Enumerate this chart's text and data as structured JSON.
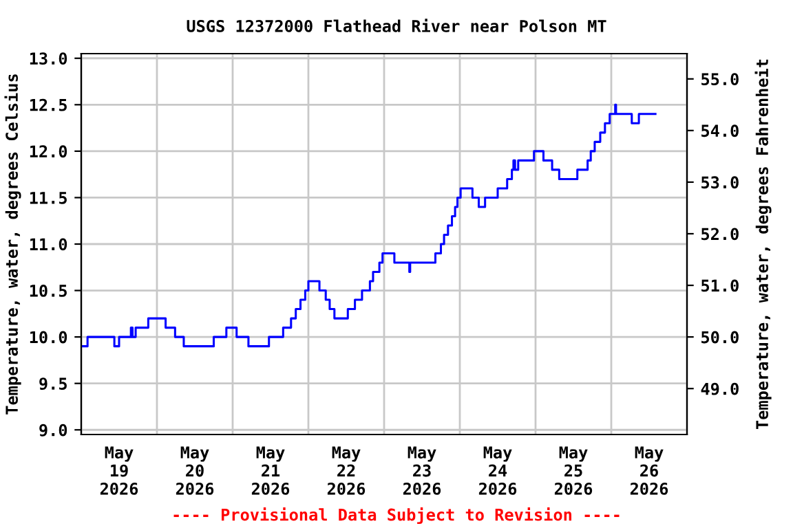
{
  "chart_data": {
    "type": "step",
    "title": "USGS 12372000 Flathead River near Polson MT",
    "ylabel": "Temperature, water, degrees Celsius",
    "y2label": "Temperature, water, degrees Fahrenheit",
    "annotations": [
      "---- Provisional Data Subject to Revision ----"
    ],
    "x": [
      "2026-05-19T00:00",
      "2026-05-19T02:00",
      "2026-05-19T10:30",
      "2026-05-19T12:00",
      "2026-05-19T15:45",
      "2026-05-19T16:15",
      "2026-05-19T17:15",
      "2026-05-19T21:15",
      "2026-05-20T02:45",
      "2026-05-20T05:45",
      "2026-05-20T08:30",
      "2026-05-20T18:00",
      "2026-05-20T22:00",
      "2026-05-21T01:15",
      "2026-05-21T05:00",
      "2026-05-21T11:30",
      "2026-05-21T16:00",
      "2026-05-21T18:30",
      "2026-05-21T20:00",
      "2026-05-21T21:30",
      "2026-05-21T23:00",
      "2026-05-22T00:00",
      "2026-05-22T03:30",
      "2026-05-22T05:30",
      "2026-05-22T06:45",
      "2026-05-22T08:15",
      "2026-05-22T12:30",
      "2026-05-22T14:45",
      "2026-05-22T17:00",
      "2026-05-22T19:30",
      "2026-05-22T20:30",
      "2026-05-22T22:30",
      "2026-05-22T23:30",
      "2026-05-23T03:15",
      "2026-05-23T08:00",
      "2026-05-23T08:15",
      "2026-05-23T16:15",
      "2026-05-23T18:00",
      "2026-05-23T19:00",
      "2026-05-23T20:15",
      "2026-05-23T21:30",
      "2026-05-23T22:30",
      "2026-05-23T23:15",
      "2026-05-24T00:15",
      "2026-05-24T04:00",
      "2026-05-24T06:00",
      "2026-05-24T08:00",
      "2026-05-24T12:00",
      "2026-05-24T15:00",
      "2026-05-24T16:30",
      "2026-05-24T17:00",
      "2026-05-24T17:30",
      "2026-05-24T18:30",
      "2026-05-24T23:30",
      "2026-05-25T02:30",
      "2026-05-25T05:15",
      "2026-05-25T07:30",
      "2026-05-25T13:15",
      "2026-05-25T16:30",
      "2026-05-25T17:30",
      "2026-05-25T18:45",
      "2026-05-25T20:30",
      "2026-05-25T22:00",
      "2026-05-25T23:30",
      "2026-05-26T01:15",
      "2026-05-26T01:30",
      "2026-05-26T06:30",
      "2026-05-26T08:45",
      "2026-05-26T14:00"
    ],
    "series": [
      {
        "color": "#0000ff",
        "values": [
          9.9,
          10.0,
          9.9,
          10.0,
          10.1,
          10.0,
          10.1,
          10.2,
          10.1,
          10.0,
          9.9,
          10.0,
          10.1,
          10.0,
          9.9,
          10.0,
          10.1,
          10.2,
          10.3,
          10.4,
          10.5,
          10.6,
          10.5,
          10.4,
          10.3,
          10.2,
          10.3,
          10.4,
          10.5,
          10.6,
          10.7,
          10.8,
          10.9,
          10.8,
          10.7,
          10.8,
          10.9,
          11.0,
          11.1,
          11.2,
          11.3,
          11.4,
          11.5,
          11.6,
          11.5,
          11.4,
          11.5,
          11.6,
          11.7,
          11.8,
          11.9,
          11.8,
          11.9,
          12.0,
          11.9,
          11.8,
          11.7,
          11.8,
          11.9,
          12.0,
          12.1,
          12.2,
          12.3,
          12.4,
          12.5,
          12.4,
          12.3,
          12.4,
          12.4
        ]
      }
    ],
    "xlim": [
      "2026-05-19T00:00",
      "2026-05-27T00:00"
    ],
    "xticks": [
      {
        "value": "2026-05-19T12:00",
        "label": "May\n19\n2026"
      },
      {
        "value": "2026-05-20T12:00",
        "label": "May\n20\n2026"
      },
      {
        "value": "2026-05-21T12:00",
        "label": "May\n21\n2026"
      },
      {
        "value": "2026-05-22T12:00",
        "label": "May\n22\n2026"
      },
      {
        "value": "2026-05-23T12:00",
        "label": "May\n23\n2026"
      },
      {
        "value": "2026-05-24T12:00",
        "label": "May\n24\n2026"
      },
      {
        "value": "2026-05-25T12:00",
        "label": "May\n25\n2026"
      },
      {
        "value": "2026-05-26T12:00",
        "label": "May\n26\n2026"
      },
      {
        "value": "2026-05-20T00:00",
        "label": null
      },
      {
        "value": "2026-05-21T00:00",
        "label": null
      },
      {
        "value": "2026-05-22T00:00",
        "label": null
      },
      {
        "value": "2026-05-23T00:00",
        "label": null
      },
      {
        "value": "2026-05-24T00:00",
        "label": null
      },
      {
        "value": "2026-05-25T00:00",
        "label": null
      },
      {
        "value": "2026-05-26T00:00",
        "label": null
      }
    ],
    "ylim": [
      8.95,
      13.05
    ],
    "yticks": [
      {
        "value": 9,
        "label": "9.0"
      },
      {
        "value": 9.5,
        "label": "9.5"
      },
      {
        "value": 10,
        "label": "10.0"
      },
      {
        "value": 10.5,
        "label": "10.5"
      },
      {
        "value": 11,
        "label": "11.0"
      },
      {
        "value": 11.5,
        "label": "11.5"
      },
      {
        "value": 12,
        "label": "12.0"
      },
      {
        "value": 12.5,
        "label": "12.5"
      },
      {
        "value": 13,
        "label": "13.0"
      }
    ],
    "y2lim": [
      48.11,
      55.49
    ],
    "y2ticks": [
      {
        "value": 49,
        "label": "49.0"
      },
      {
        "value": 50,
        "label": "50.0"
      },
      {
        "value": 51,
        "label": "51.0"
      },
      {
        "value": 52,
        "label": "52.0"
      },
      {
        "value": 53,
        "label": "53.0"
      },
      {
        "value": 54,
        "label": "54.0"
      },
      {
        "value": 55,
        "label": "55.0"
      }
    ],
    "grid": true,
    "legend": false,
    "line_style": "solid",
    "marker": "none"
  }
}
